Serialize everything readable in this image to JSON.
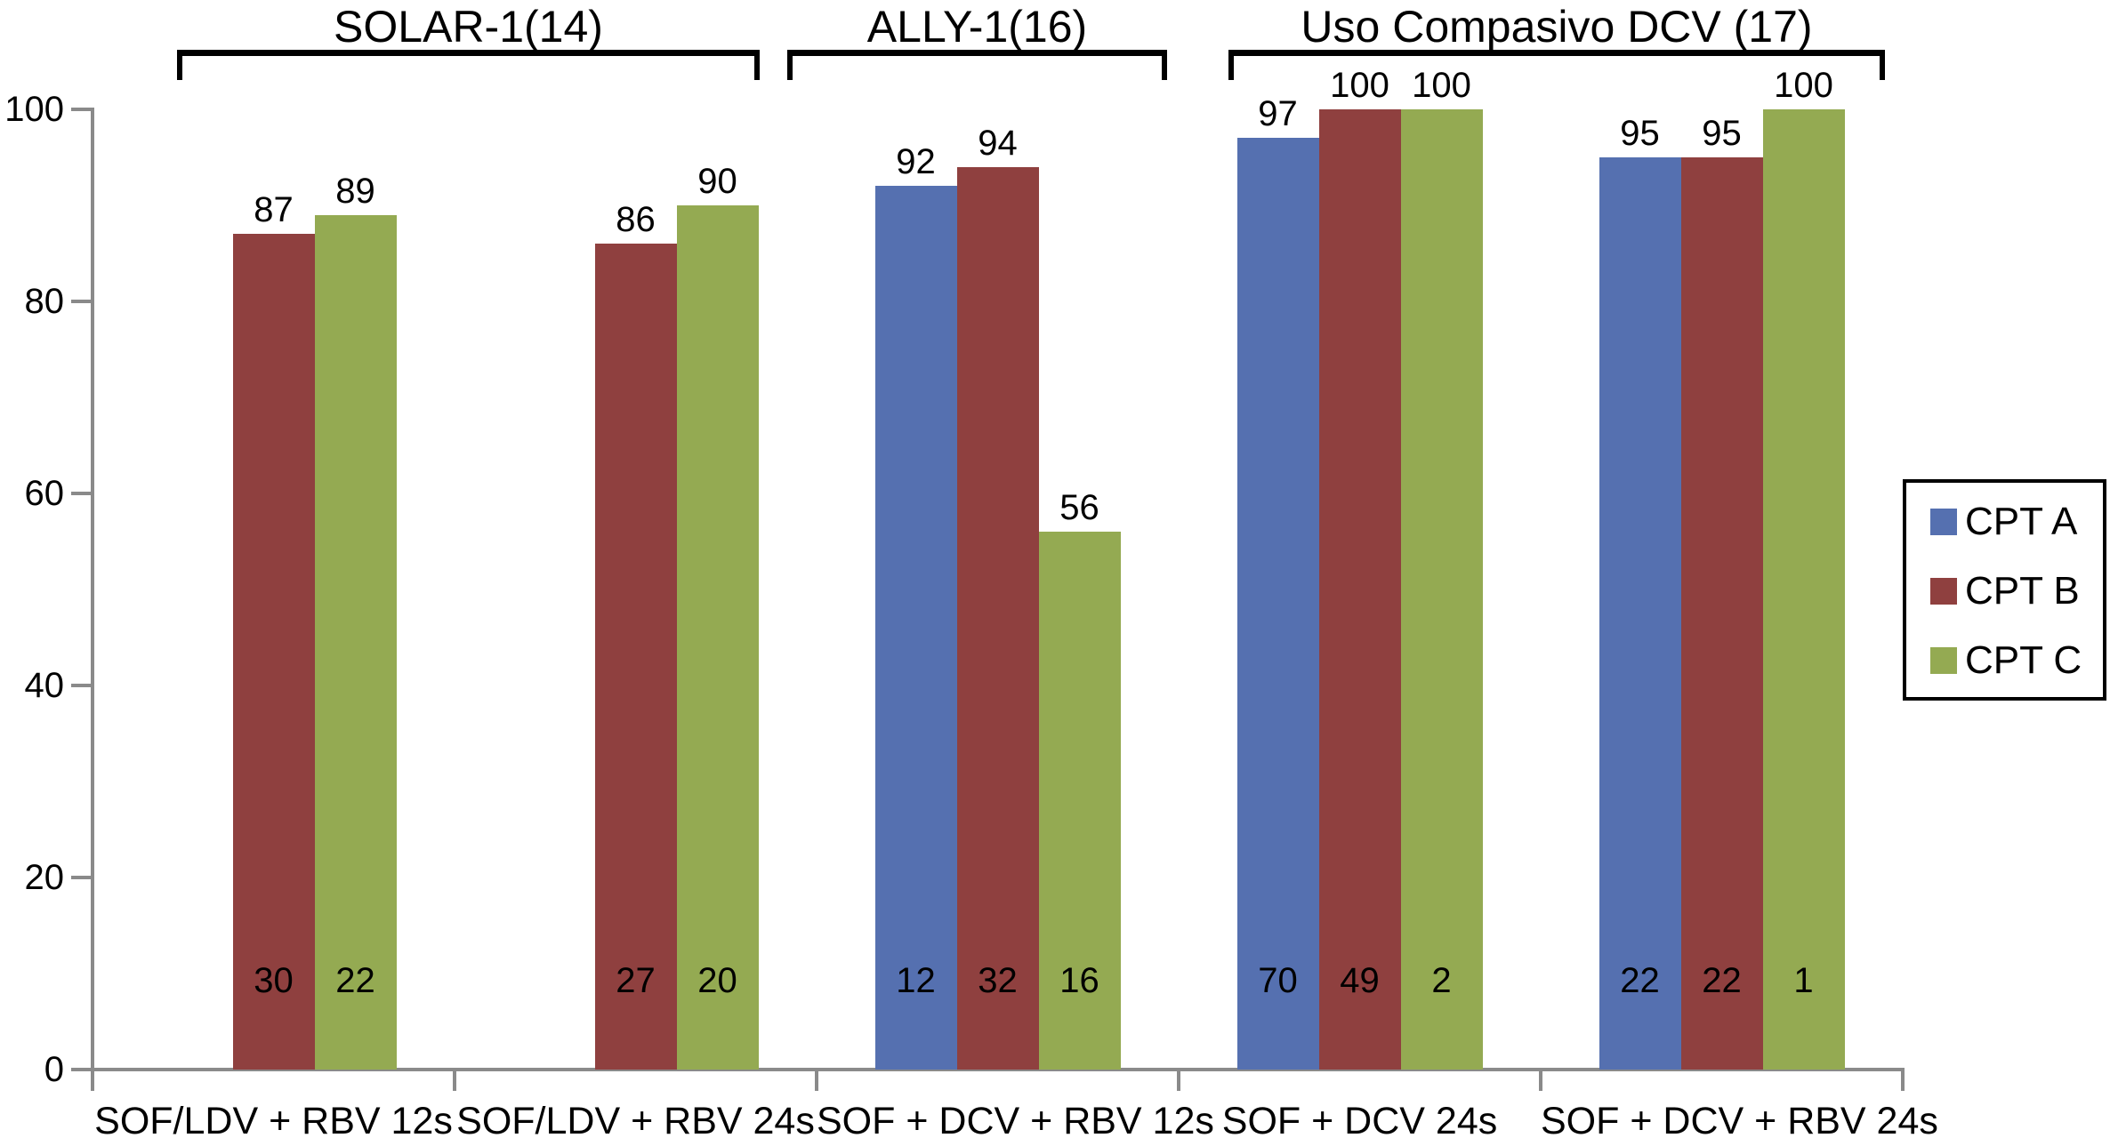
{
  "chart_data": {
    "type": "bar",
    "title": "",
    "xlabel": "",
    "ylabel": "",
    "ylim": [
      0,
      100
    ],
    "yticks": [
      0,
      20,
      40,
      60,
      80,
      100
    ],
    "grid": false,
    "legend_position": "right",
    "categories": [
      "SOF/LDV + RBV 12s",
      "SOF/LDV + RBV 24s",
      "SOF + DCV + RBV 12s",
      "SOF + DCV 24s",
      "SOF + DCV + RBV 24s"
    ],
    "series": [
      {
        "name": "CPT A",
        "color": "#5570b0",
        "values": [
          null,
          null,
          92,
          97,
          95
        ],
        "n_labels": [
          null,
          null,
          "12",
          "70",
          "22"
        ]
      },
      {
        "name": "CPT B",
        "color": "#8f403f",
        "values": [
          87,
          86,
          94,
          100,
          95
        ],
        "n_labels": [
          "30",
          "27",
          "32",
          "49",
          "22"
        ]
      },
      {
        "name": "CPT C",
        "color": "#94aa52",
        "values": [
          89,
          90,
          56,
          100,
          100
        ],
        "n_labels": [
          "22",
          "20",
          "16",
          "2",
          "1"
        ]
      }
    ],
    "group_brackets": [
      {
        "label": "SOLAR-1(14)",
        "categories": [
          0,
          1
        ]
      },
      {
        "label": "ALLY-1(16)",
        "categories": [
          2,
          2
        ]
      },
      {
        "label": "Uso Compasivo DCV (17)",
        "categories": [
          3,
          4
        ]
      }
    ]
  },
  "colors": {
    "axis": "#8a8a8a",
    "bracket": "#000000",
    "text": "#000000",
    "background": "#ffffff"
  }
}
